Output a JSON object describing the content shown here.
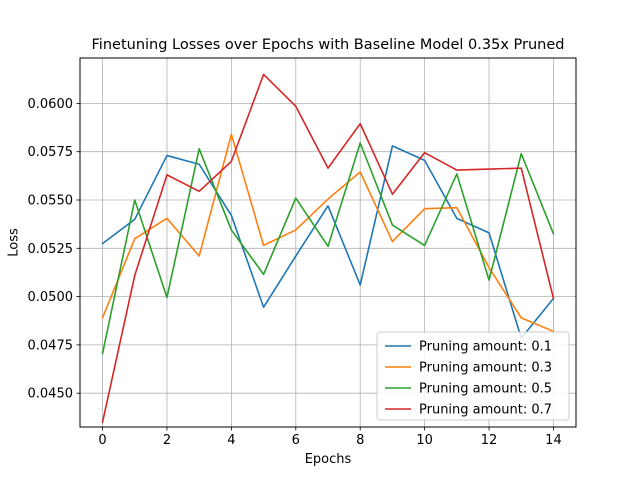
{
  "chart_data": {
    "type": "line",
    "title": "Finetuning Losses over Epochs with Baseline Model 0.35x Pruned",
    "xlabel": "Epochs",
    "ylabel": "Loss",
    "x": [
      0,
      1,
      2,
      3,
      4,
      5,
      6,
      7,
      8,
      9,
      10,
      11,
      12,
      13,
      14
    ],
    "xlim": [
      -0.7,
      14.7
    ],
    "ylim": [
      0.04325,
      0.06235
    ],
    "xticks": [
      0,
      2,
      4,
      6,
      8,
      10,
      12,
      14
    ],
    "xtick_labels": [
      "0",
      "2",
      "4",
      "6",
      "8",
      "10",
      "12",
      "14"
    ],
    "yticks": [
      0.045,
      0.0475,
      0.05,
      0.0525,
      0.055,
      0.0575,
      0.06
    ],
    "ytick_labels": [
      "0.0450",
      "0.0475",
      "0.0500",
      "0.0525",
      "0.0550",
      "0.0575",
      "0.0600"
    ],
    "grid": true,
    "legend_position": "lower-right",
    "series": [
      {
        "name": "Pruning amount: 0.1",
        "color": "#1f77b4",
        "values": [
          0.05275,
          0.054,
          0.0573,
          0.05685,
          0.0542,
          0.04945,
          0.0521,
          0.0547,
          0.0506,
          0.0578,
          0.05705,
          0.05405,
          0.0533,
          0.04785,
          0.0499
        ]
      },
      {
        "name": "Pruning amount: 0.3",
        "color": "#ff7f0e",
        "values": [
          0.0489,
          0.053,
          0.05405,
          0.0521,
          0.0584,
          0.05265,
          0.05345,
          0.05505,
          0.05645,
          0.05285,
          0.05455,
          0.0546,
          0.0515,
          0.0489,
          0.0482
        ]
      },
      {
        "name": "Pruning amount: 0.5",
        "color": "#2ca02c",
        "values": [
          0.04705,
          0.055,
          0.04995,
          0.05765,
          0.05345,
          0.05115,
          0.0551,
          0.0526,
          0.05795,
          0.0537,
          0.05265,
          0.05635,
          0.05085,
          0.0574,
          0.05325
        ]
      },
      {
        "name": "Pruning amount: 0.7",
        "color": "#d62728",
        "values": [
          0.0435,
          0.0511,
          0.0563,
          0.05545,
          0.057,
          0.0615,
          0.05985,
          0.05665,
          0.05895,
          0.0553,
          0.05745,
          0.05655,
          0.0566,
          0.05665,
          0.0499
        ]
      }
    ]
  }
}
